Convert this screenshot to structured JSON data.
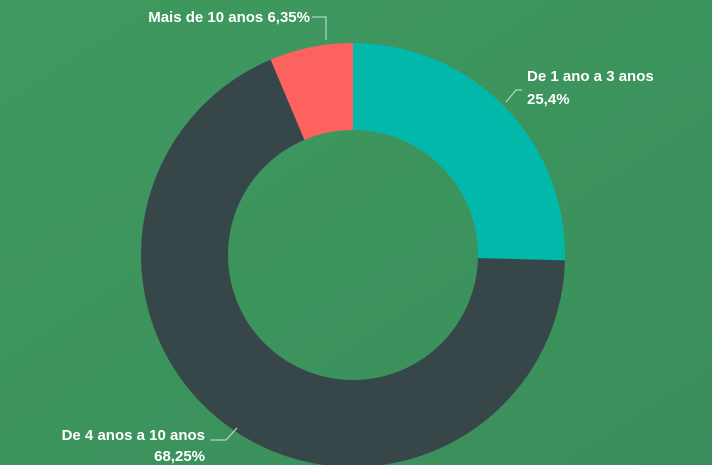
{
  "chart_data": {
    "type": "donut",
    "categories": [
      "De 1 ano a 3 anos",
      "De 4 anos a 10 anos",
      "Mais de 10 anos"
    ],
    "values": [
      25.4,
      68.25,
      6.35
    ],
    "value_labels": [
      "25,4%",
      "68,25%",
      "6,35%"
    ],
    "colors": [
      "#01b8aa",
      "#374649",
      "#fd625e"
    ]
  }
}
